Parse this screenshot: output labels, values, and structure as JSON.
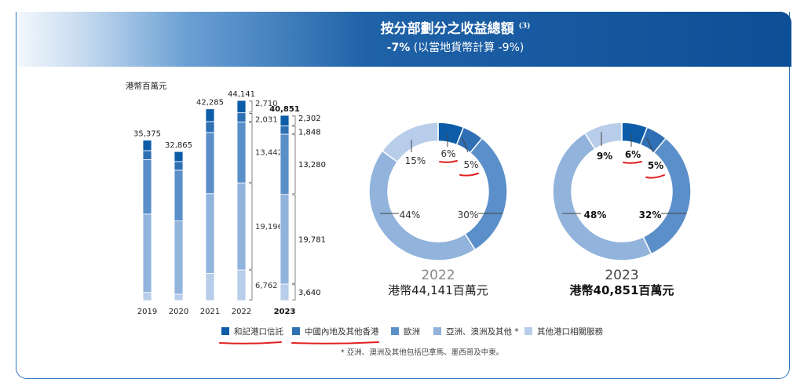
{
  "header": {
    "title": "按分部劃分之收益總額",
    "title_note": "(3)",
    "subtitle_change": "-7%",
    "subtitle_rest": " (以當地貨幣計算 -9%)"
  },
  "colors": {
    "seg1": "#0c5ca8",
    "seg2": "#2f6fb4",
    "seg3": "#5b8fc9",
    "seg4": "#91b3dc",
    "seg5": "#b7cde9",
    "annotation": "#e02020"
  },
  "chart_data": [
    {
      "type": "bar",
      "stacked": true,
      "unit_label": "港幣百萬元",
      "categories": [
        "2019",
        "2020",
        "2021",
        "2022",
        "2023"
      ],
      "totals": [
        "35,375",
        "32,865",
        "42,285",
        "44,141",
        "40,851"
      ],
      "total_values": [
        35375,
        32865,
        42285,
        44141,
        40851
      ],
      "series": [
        {
          "name": "和記港口信託",
          "values": [
            2300,
            2200,
            2800,
            2710,
            2302
          ]
        },
        {
          "name": "中國內地及其他香港",
          "values": [
            2000,
            1900,
            2400,
            2031,
            1848
          ]
        },
        {
          "name": "歐洲",
          "values": [
            12000,
            11200,
            13500,
            13442,
            13280
          ]
        },
        {
          "name": "亞洲、澳洲及其他 *",
          "values": [
            17275,
            16165,
            17585,
            19196,
            19781
          ]
        },
        {
          "name": "其他港口相關服務",
          "values": [
            1800,
            1400,
            6000,
            6762,
            3640
          ]
        }
      ],
      "labeled_values": {
        "2022": [
          "2,710",
          "2,031",
          "13,442",
          "19,196",
          "6,762"
        ],
        "2023": [
          "2,302",
          "1,848",
          "13,280",
          "19,781",
          "3,640"
        ]
      }
    },
    {
      "type": "pie",
      "donut": true,
      "title": "2022",
      "total_label": "港幣44,141百萬元",
      "slices": [
        {
          "name": "和記港口信託",
          "value": 6,
          "label": "6%"
        },
        {
          "name": "中國內地及其他香港",
          "value": 5,
          "label": "5%"
        },
        {
          "name": "歐洲",
          "value": 30,
          "label": "30%"
        },
        {
          "name": "亞洲、澳洲及其他 *",
          "value": 44,
          "label": "44%"
        },
        {
          "name": "其他港口相關服務",
          "value": 15,
          "label": "15%"
        }
      ]
    },
    {
      "type": "pie",
      "donut": true,
      "title": "2023",
      "total_label": "港幣40,851百萬元",
      "slices": [
        {
          "name": "和記港口信託",
          "value": 6,
          "label": "6%"
        },
        {
          "name": "中國內地及其他香港",
          "value": 5,
          "label": "5%"
        },
        {
          "name": "歐洲",
          "value": 32,
          "label": "32%"
        },
        {
          "name": "亞洲、澳洲及其他 *",
          "value": 48,
          "label": "48%"
        },
        {
          "name": "其他港口相關服務",
          "value": 9,
          "label": "9%"
        }
      ]
    }
  ],
  "legend": [
    "和記港口信託",
    "中國內地及其他香港",
    "歐洲",
    "亞洲、澳洲及其他 *",
    "其他港口相關服務"
  ],
  "footnote": "* 亞洲、澳洲及其他包括巴拿馬、墨西哥及中東。"
}
